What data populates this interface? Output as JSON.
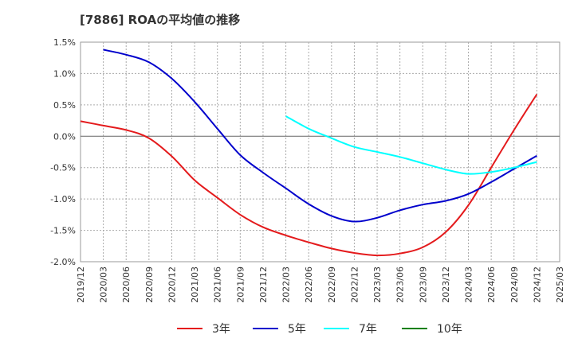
{
  "chart_data": {
    "type": "line",
    "title": "[7886]  ROAの平均値の推移",
    "xlabel": "",
    "ylabel": "",
    "x": [
      "2019/12",
      "2020/03",
      "2020/06",
      "2020/09",
      "2020/12",
      "2021/03",
      "2021/06",
      "2021/09",
      "2021/12",
      "2022/03",
      "2022/06",
      "2022/09",
      "2022/12",
      "2023/03",
      "2023/06",
      "2023/09",
      "2023/12",
      "2024/03",
      "2024/06",
      "2024/09",
      "2024/12",
      "2025/03"
    ],
    "yticks": [
      "1.5%",
      "1.0%",
      "0.5%",
      "0.0%",
      "-0.5%",
      "-1.0%",
      "-1.5%",
      "-2.0%"
    ],
    "ylim": [
      -2.0,
      1.5
    ],
    "grid": true,
    "legend_position": "bottom",
    "series": [
      {
        "name": "3年",
        "color": "#e41a1c",
        "values": [
          0.24,
          0.17,
          0.1,
          -0.03,
          -0.32,
          -0.7,
          -0.98,
          -1.25,
          -1.45,
          -1.58,
          -1.69,
          -1.79,
          -1.86,
          -1.9,
          -1.87,
          -1.77,
          -1.53,
          -1.1,
          -0.5,
          0.1,
          0.67,
          null
        ]
      },
      {
        "name": "5年",
        "color": "#0000cc",
        "values": [
          null,
          1.38,
          1.3,
          1.18,
          0.92,
          0.55,
          0.12,
          -0.3,
          -0.58,
          -0.83,
          -1.08,
          -1.27,
          -1.36,
          -1.3,
          -1.18,
          -1.09,
          -1.03,
          -0.92,
          -0.73,
          -0.52,
          -0.31,
          null
        ]
      },
      {
        "name": "7年",
        "color": "#00ffff",
        "values": [
          null,
          null,
          null,
          null,
          null,
          null,
          null,
          null,
          null,
          0.32,
          0.12,
          -0.03,
          -0.17,
          -0.25,
          -0.33,
          -0.43,
          -0.53,
          -0.6,
          -0.57,
          -0.5,
          -0.41,
          null
        ]
      },
      {
        "name": "10年",
        "color": "#008000",
        "values": [
          null,
          null,
          null,
          null,
          null,
          null,
          null,
          null,
          null,
          null,
          null,
          null,
          null,
          null,
          null,
          null,
          null,
          null,
          null,
          null,
          null,
          null
        ]
      }
    ]
  }
}
